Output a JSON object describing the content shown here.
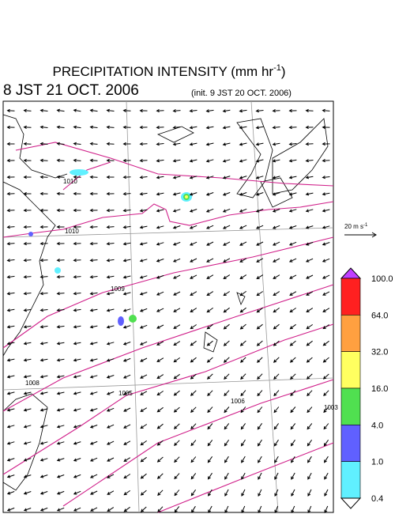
{
  "header": {
    "title": "PRECIPITATION INTENSITY (mm hr",
    "title_exponent": "-1",
    "title_close": ")",
    "valid_time": "8 JST 21 OCT. 2006",
    "init_time": "(init. 9 JST 20 OCT. 2006)"
  },
  "reference_vector": {
    "label": "20 m s",
    "exponent": "-1"
  },
  "colorbar": {
    "labels": [
      "100.0",
      "64.0",
      "32.0",
      "16.0",
      "4.0",
      "1.0",
      "0.4"
    ],
    "colors": [
      "#ff2020",
      "#ffa040",
      "#ffff60",
      "#50e050",
      "#6060ff",
      "#60f0ff"
    ],
    "over_color": "#c040ff",
    "under_color": "#ffffff"
  },
  "contour_labels": [
    "1010",
    "1010",
    "1009",
    "1008",
    "1005",
    "1006",
    "1003"
  ]
}
